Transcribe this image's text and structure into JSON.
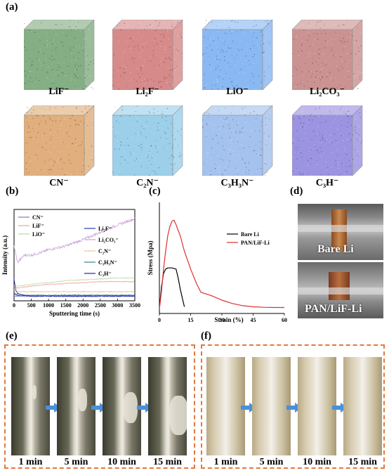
{
  "panels": {
    "a": "(a)",
    "b": "(b)",
    "c": "(c)",
    "d": "(d)",
    "e": "(e)",
    "f": "(f)"
  },
  "cubes": [
    {
      "label_base": "LiF",
      "label_sub": "",
      "label_sub2": "",
      "label_tail": "",
      "charge": "-",
      "color": "#1f6b1f"
    },
    {
      "label_base": "Li",
      "label_sub": "2",
      "label_sub2": "",
      "label_tail": "F",
      "charge": "-",
      "color": "#b52a2a"
    },
    {
      "label_base": "LiO",
      "label_sub": "",
      "label_sub2": "",
      "label_tail": "",
      "charge": "-",
      "color": "#2a7de8"
    },
    {
      "label_base": "Li",
      "label_sub": "2",
      "label_sub2": "3",
      "label_tail": "CO",
      "charge": "-",
      "color": "#a13838"
    },
    {
      "label_base": "CN",
      "label_sub": "",
      "label_sub2": "",
      "label_tail": "",
      "charge": "-",
      "color": "#c66d12"
    },
    {
      "label_base": "C",
      "label_sub": "2",
      "label_sub2": "",
      "label_tail": "N",
      "charge": "-",
      "color": "#4aa8d8"
    },
    {
      "label_base": "C",
      "label_sub": "3",
      "label_sub2": "3",
      "label_tail": "H",
      "charge": "-",
      "color": "#5a8fe0",
      "last": "N"
    },
    {
      "label_base": "C",
      "label_sub": "3",
      "label_sub2": "",
      "label_tail": "H",
      "charge": "-",
      "color": "#4a3ac8"
    }
  ],
  "cube_labels_text": [
    "LiF⁻",
    "Li₂F⁻",
    "LiO⁻",
    "Li₂CO₃⁻",
    "CN⁻",
    "C₂N⁻",
    "C₃H₃N⁻",
    "C₃H⁻"
  ],
  "chart_data": [
    {
      "type": "line",
      "xlabel": "Sputtering time (s)",
      "ylabel": "Intensity (a.u.)",
      "xlim": [
        0,
        3500
      ],
      "xticks": [
        0,
        500,
        1000,
        1500,
        2000,
        2500,
        3000,
        3500
      ],
      "legend_left": [
        "CN⁻",
        "LiF⁻",
        "LiO⁻"
      ],
      "legend_right": [
        "Li₂F⁻",
        "Li₂CO₃⁻",
        "C₂N⁻",
        "C₃H₃N⁻",
        "C₃H⁻"
      ],
      "series": [
        {
          "name": "CN⁻",
          "color": "#7b7bd0",
          "x": [
            0,
            100,
            300,
            500,
            1000,
            1500,
            2000,
            2500,
            3000,
            3500
          ],
          "y": [
            0.05,
            0.05,
            0.05,
            0.05,
            0.05,
            0.05,
            0.05,
            0.05,
            0.05,
            0.05
          ]
        },
        {
          "name": "LiF⁻",
          "color": "#f0a0a0",
          "x": [
            0,
            100,
            300,
            500,
            1000,
            1500,
            2000,
            2500,
            3000,
            3500
          ],
          "y": [
            0.16,
            0.14,
            0.15,
            0.16,
            0.18,
            0.19,
            0.2,
            0.21,
            0.21,
            0.21
          ]
        },
        {
          "name": "LiO⁻",
          "color": "#b8dca0",
          "x": [
            0,
            100,
            300,
            500,
            1000,
            1500,
            2000,
            2500,
            3000,
            3500
          ],
          "y": [
            0.18,
            0.16,
            0.17,
            0.18,
            0.2,
            0.22,
            0.23,
            0.24,
            0.25,
            0.25
          ]
        },
        {
          "name": "Li₂F⁻",
          "color": "#2a40b0",
          "x": [
            0,
            100,
            300,
            500,
            1000,
            1500,
            2000,
            2500,
            3000,
            3500
          ],
          "y": [
            0.07,
            0.06,
            0.06,
            0.06,
            0.06,
            0.06,
            0.06,
            0.06,
            0.06,
            0.06
          ]
        },
        {
          "name": "Li₂CO₃⁻",
          "color": "#c8a0d8",
          "x": [
            0,
            100,
            300,
            500,
            800,
            1000,
            1500,
            2000,
            2500,
            3000,
            3500
          ],
          "y": [
            0.6,
            0.42,
            0.5,
            0.5,
            0.53,
            0.56,
            0.6,
            0.67,
            0.75,
            0.83,
            0.9
          ]
        },
        {
          "name": "C₂N⁻",
          "color": "#e8c098",
          "x": [
            0,
            100,
            300,
            500,
            1000,
            1500,
            2000,
            2500,
            3000,
            3500
          ],
          "y": [
            0.12,
            0.1,
            0.1,
            0.1,
            0.1,
            0.1,
            0.1,
            0.1,
            0.1,
            0.1
          ]
        },
        {
          "name": "C₃H₃N⁻",
          "color": "#3a8080",
          "x": [
            0,
            100,
            300,
            500,
            1000,
            1500,
            2000,
            2500,
            3000,
            3500
          ],
          "y": [
            0.09,
            0.06,
            0.06,
            0.06,
            0.06,
            0.06,
            0.06,
            0.06,
            0.06,
            0.06
          ]
        },
        {
          "name": "C₃H⁻",
          "color": "#1a2aa0",
          "x": [
            0,
            50,
            100,
            300,
            500,
            1000,
            1500,
            2000,
            2500,
            3000,
            3500
          ],
          "y": [
            0.24,
            0.12,
            0.08,
            0.06,
            0.05,
            0.05,
            0.05,
            0.05,
            0.05,
            0.05,
            0.05
          ]
        }
      ]
    },
    {
      "type": "line",
      "xlabel": "Strain (%)",
      "ylabel": "Stress (Mpa)",
      "xlim": [
        0,
        60
      ],
      "ylim": [
        0,
        5
      ],
      "xticks": [
        0,
        15,
        30,
        45,
        60
      ],
      "series": [
        {
          "name": "Bare Li",
          "color": "#000000",
          "x": [
            0,
            1,
            2,
            3,
            4,
            6,
            8,
            9,
            10,
            11,
            12
          ],
          "y": [
            0.2,
            1.2,
            1.8,
            2.0,
            2.05,
            2.05,
            2.0,
            1.6,
            1.1,
            0.7,
            0.3
          ]
        },
        {
          "name": "PAN/LiF-Li",
          "color": "#e03030",
          "x": [
            0,
            1,
            2,
            3,
            4,
            5,
            6,
            7,
            8,
            10,
            12,
            15,
            18,
            20,
            25,
            30,
            35,
            40,
            45,
            50,
            55,
            60
          ],
          "y": [
            0.2,
            1.0,
            2.0,
            2.8,
            3.5,
            3.9,
            4.15,
            4.2,
            4.0,
            3.5,
            2.8,
            2.0,
            1.3,
            0.95,
            0.8,
            0.6,
            0.45,
            0.35,
            0.3,
            0.28,
            0.27,
            0.27
          ]
        }
      ]
    }
  ],
  "photo_d": {
    "top_label": "Bare Li",
    "bottom_label": "PAN/LiF-Li"
  },
  "panel_e_times": [
    "1 min",
    "5 min",
    "10 min",
    "15 min"
  ],
  "panel_f_times": [
    "1 min",
    "5 min",
    "10 min",
    "15 min"
  ],
  "colors": {
    "frame": "#e07a3e",
    "arrow": "#4a90d9"
  }
}
